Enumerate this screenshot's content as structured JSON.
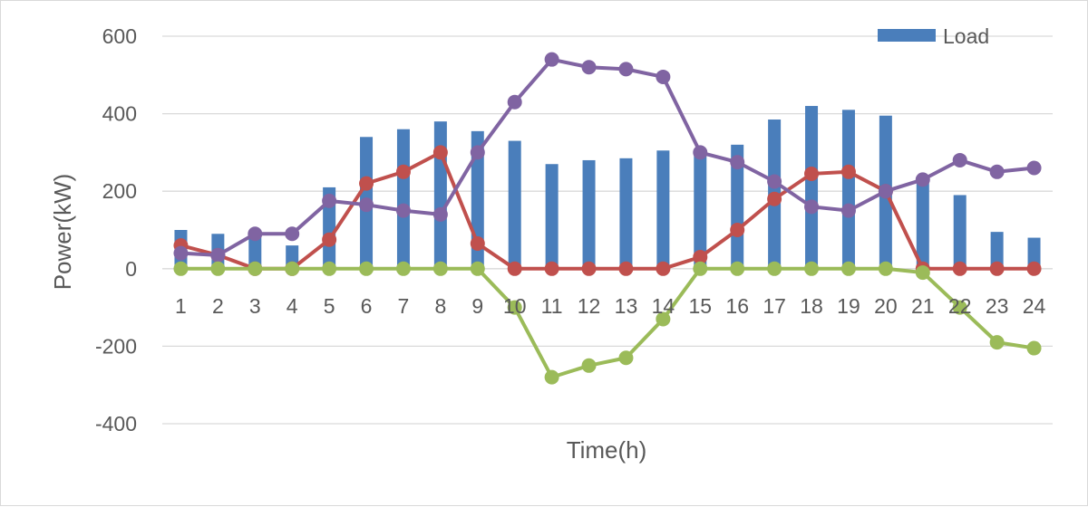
{
  "chart_data": {
    "type": "bar",
    "categories": [
      "1",
      "2",
      "3",
      "4",
      "5",
      "6",
      "7",
      "8",
      "9",
      "10",
      "11",
      "12",
      "13",
      "14",
      "15",
      "16",
      "17",
      "18",
      "19",
      "20",
      "21",
      "22",
      "23",
      "24"
    ],
    "xlabel": "Time(h)",
    "ylabel": "Power(kW)",
    "ylim": [
      -400,
      600
    ],
    "yticks": [
      "600",
      "400",
      "200",
      "0",
      "-200",
      "-400"
    ],
    "grid": true,
    "legend_position": "top-right",
    "series": [
      {
        "name": "Load",
        "type": "bar",
        "color": "#4a7ebb",
        "values": [
          100,
          90,
          90,
          60,
          210,
          340,
          360,
          380,
          355,
          330,
          270,
          280,
          285,
          305,
          300,
          320,
          385,
          420,
          410,
          395,
          230,
          190,
          95,
          80
        ]
      },
      {
        "type": "line",
        "color": "#c0504d",
        "values": [
          60,
          35,
          0,
          0,
          75,
          220,
          250,
          300,
          65,
          0,
          0,
          0,
          0,
          0,
          30,
          100,
          180,
          245,
          250,
          200,
          0,
          0,
          0,
          0
        ]
      },
      {
        "type": "line",
        "color": "#8064a2",
        "values": [
          40,
          35,
          90,
          90,
          175,
          165,
          150,
          140,
          300,
          430,
          540,
          520,
          515,
          495,
          300,
          275,
          225,
          160,
          150,
          200,
          230,
          280,
          250,
          260
        ]
      },
      {
        "type": "line",
        "color": "#9bbb59",
        "values": [
          0,
          0,
          0,
          0,
          0,
          0,
          0,
          0,
          0,
          -100,
          -280,
          -250,
          -230,
          -130,
          0,
          0,
          0,
          0,
          0,
          0,
          -10,
          -100,
          -190,
          -205
        ]
      }
    ]
  }
}
